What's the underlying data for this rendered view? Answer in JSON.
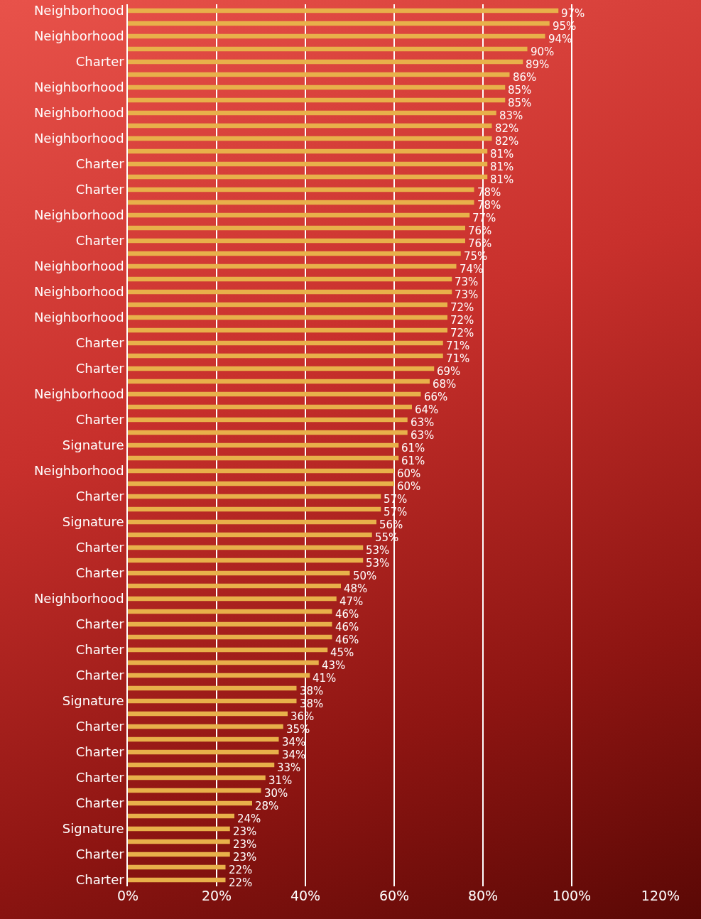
{
  "chart_data": {
    "type": "bar",
    "orientation": "horizontal",
    "categories": [
      "Neighborhood",
      null,
      "Neighborhood",
      null,
      "Charter",
      null,
      "Neighborhood",
      null,
      "Neighborhood",
      null,
      "Neighborhood",
      null,
      "Charter",
      null,
      "Charter",
      null,
      "Neighborhood",
      null,
      "Charter",
      null,
      "Neighborhood",
      null,
      "Neighborhood",
      null,
      "Neighborhood",
      null,
      "Charter",
      null,
      "Charter",
      null,
      "Neighborhood",
      null,
      "Charter",
      null,
      "Signature",
      null,
      "Neighborhood",
      null,
      "Charter",
      null,
      "Signature",
      null,
      "Charter",
      null,
      "Charter",
      null,
      "Neighborhood",
      null,
      "Charter",
      null,
      "Charter",
      null,
      "Charter",
      null,
      "Signature",
      null,
      "Charter",
      null,
      "Charter",
      null,
      "Charter",
      null,
      "Charter",
      null,
      "Signature",
      null,
      "Charter",
      null,
      "Charter"
    ],
    "values": [
      97,
      95,
      94,
      90,
      89,
      86,
      85,
      85,
      83,
      82,
      82,
      81,
      81,
      81,
      78,
      78,
      77,
      76,
      76,
      75,
      74,
      73,
      73,
      72,
      72,
      72,
      71,
      71,
      69,
      68,
      66,
      64,
      63,
      63,
      61,
      61,
      60,
      60,
      57,
      57,
      56,
      55,
      53,
      53,
      50,
      48,
      47,
      46,
      46,
      46,
      45,
      43,
      41,
      38,
      38,
      36,
      35,
      34,
      34,
      33,
      31,
      30,
      28,
      24,
      23,
      23,
      23,
      22,
      22
    ],
    "value_labels": [
      "97%",
      "95%",
      "94%",
      "90%",
      "89%",
      "86%",
      "85%",
      "85%",
      "83%",
      "82%",
      "82%",
      "81%",
      "81%",
      "81%",
      "78%",
      "78%",
      "77%",
      "76%",
      "76%",
      "75%",
      "74%",
      "73%",
      "73%",
      "72%",
      "72%",
      "72%",
      "71%",
      "71%",
      "69%",
      "68%",
      "66%",
      "64%",
      "63%",
      "63%",
      "61%",
      "61%",
      "60%",
      "60%",
      "57%",
      "57%",
      "56%",
      "55%",
      "53%",
      "53%",
      "50%",
      "48%",
      "47%",
      "46%",
      "46%",
      "46%",
      "45%",
      "43%",
      "41%",
      "38%",
      "38%",
      "36%",
      "35%",
      "34%",
      "34%",
      "33%",
      "31%",
      "30%",
      "28%",
      "24%",
      "23%",
      "23%",
      "23%",
      "22%",
      "22%"
    ],
    "color": "#e8b04a",
    "xlim": [
      0,
      120
    ],
    "xticks": [
      {
        "value": 0,
        "label": "0%"
      },
      {
        "value": 20,
        "label": "20%"
      },
      {
        "value": 40,
        "label": "40%"
      },
      {
        "value": 60,
        "label": "60%"
      },
      {
        "value": 80,
        "label": "80%"
      },
      {
        "value": 100,
        "label": "100%"
      },
      {
        "value": 120,
        "label": "120%"
      }
    ],
    "grid": "x"
  }
}
